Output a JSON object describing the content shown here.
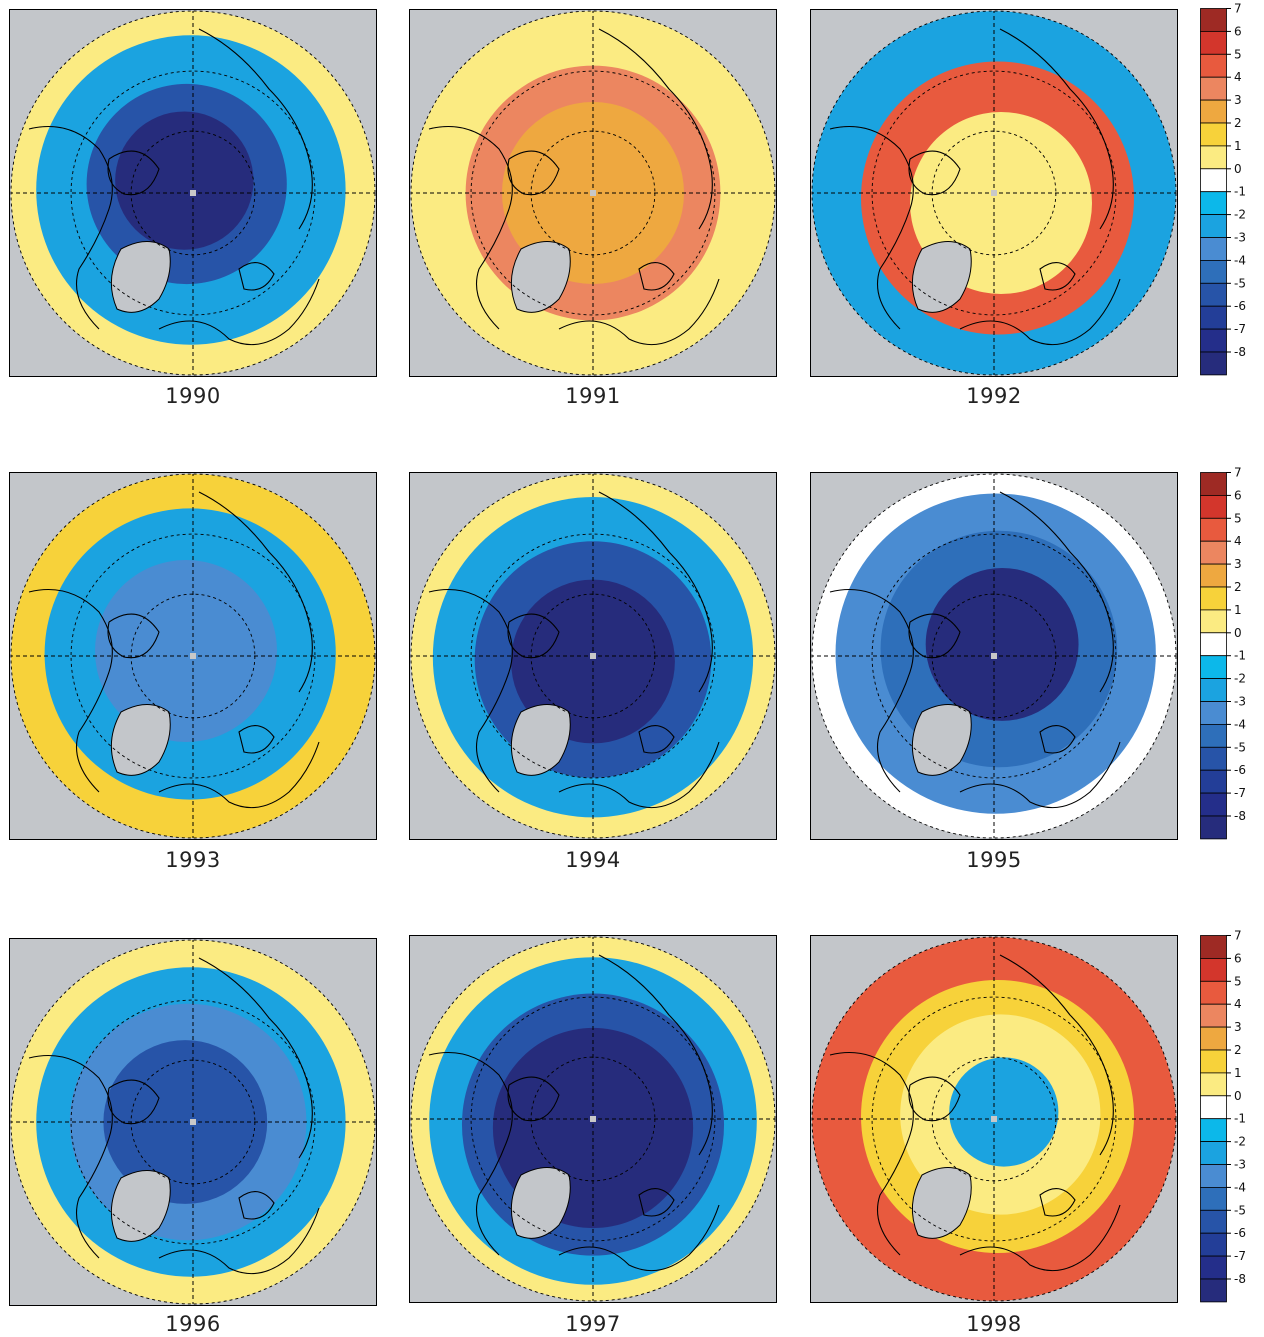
{
  "figure": {
    "colorbar": {
      "levels": [
        "7",
        "6",
        "5",
        "4",
        "3",
        "2",
        "1",
        "0",
        "-1",
        "-2",
        "-3",
        "-4",
        "-5",
        "-6",
        "-7",
        "-8"
      ],
      "colors": [
        "#9e2a24",
        "#d3362c",
        "#e85a3e",
        "#ec8660",
        "#eea840",
        "#f7d23a",
        "#fbeb82",
        "#ffffff",
        "#0cb8ea",
        "#1ba3e0",
        "#4a8cd2",
        "#2e6fba",
        "#2754a8",
        "#233e98",
        "#242e8a",
        "#262c7c"
      ]
    },
    "ocean_gray": "#c3c6ca",
    "coast_color": "#000000",
    "panels": [
      {
        "year": "1990",
        "pattern": [
          [
            "#262c7c",
            0.38
          ],
          [
            "#2754a8",
            0.55
          ],
          [
            "#1ba3e0",
            0.85
          ],
          [
            "#fbeb82",
            1.0
          ]
        ]
      },
      {
        "year": "1991",
        "pattern": [
          [
            "#eea840",
            0.5
          ],
          [
            "#ec8660",
            0.7
          ],
          [
            "#fbeb82",
            1.0
          ]
        ]
      },
      {
        "year": "1992",
        "pattern": [
          [
            "#fbeb82",
            0.5
          ],
          [
            "#e85a3e",
            0.75
          ],
          [
            "#1ba3e0",
            1.0
          ]
        ]
      },
      {
        "year": "1993",
        "pattern": [
          [
            "#4a8cd2",
            0.5
          ],
          [
            "#1ba3e0",
            0.8
          ],
          [
            "#f7d23a",
            1.0
          ]
        ]
      },
      {
        "year": "1994",
        "pattern": [
          [
            "#262c7c",
            0.45
          ],
          [
            "#2754a8",
            0.65
          ],
          [
            "#1ba3e0",
            0.88
          ],
          [
            "#fbeb82",
            1.0
          ]
        ]
      },
      {
        "year": "1995",
        "pattern": [
          [
            "#262c7c",
            0.42
          ],
          [
            "#2e6fba",
            0.65
          ],
          [
            "#4a8cd2",
            0.88
          ],
          [
            "#ffffff",
            1.0
          ]
        ]
      },
      {
        "year": "1996",
        "pattern": [
          [
            "#2754a8",
            0.45
          ],
          [
            "#4a8cd2",
            0.65
          ],
          [
            "#1ba3e0",
            0.85
          ],
          [
            "#fbeb82",
            1.0
          ]
        ]
      },
      {
        "year": "1997",
        "pattern": [
          [
            "#262c7c",
            0.55
          ],
          [
            "#2754a8",
            0.72
          ],
          [
            "#1ba3e0",
            0.9
          ],
          [
            "#fbeb82",
            1.0
          ]
        ]
      },
      {
        "year": "1998",
        "pattern": [
          [
            "#1ba3e0",
            0.3
          ],
          [
            "#fbeb82",
            0.55
          ],
          [
            "#f7d23a",
            0.75
          ],
          [
            "#e85a3e",
            1.0
          ]
        ]
      }
    ]
  }
}
